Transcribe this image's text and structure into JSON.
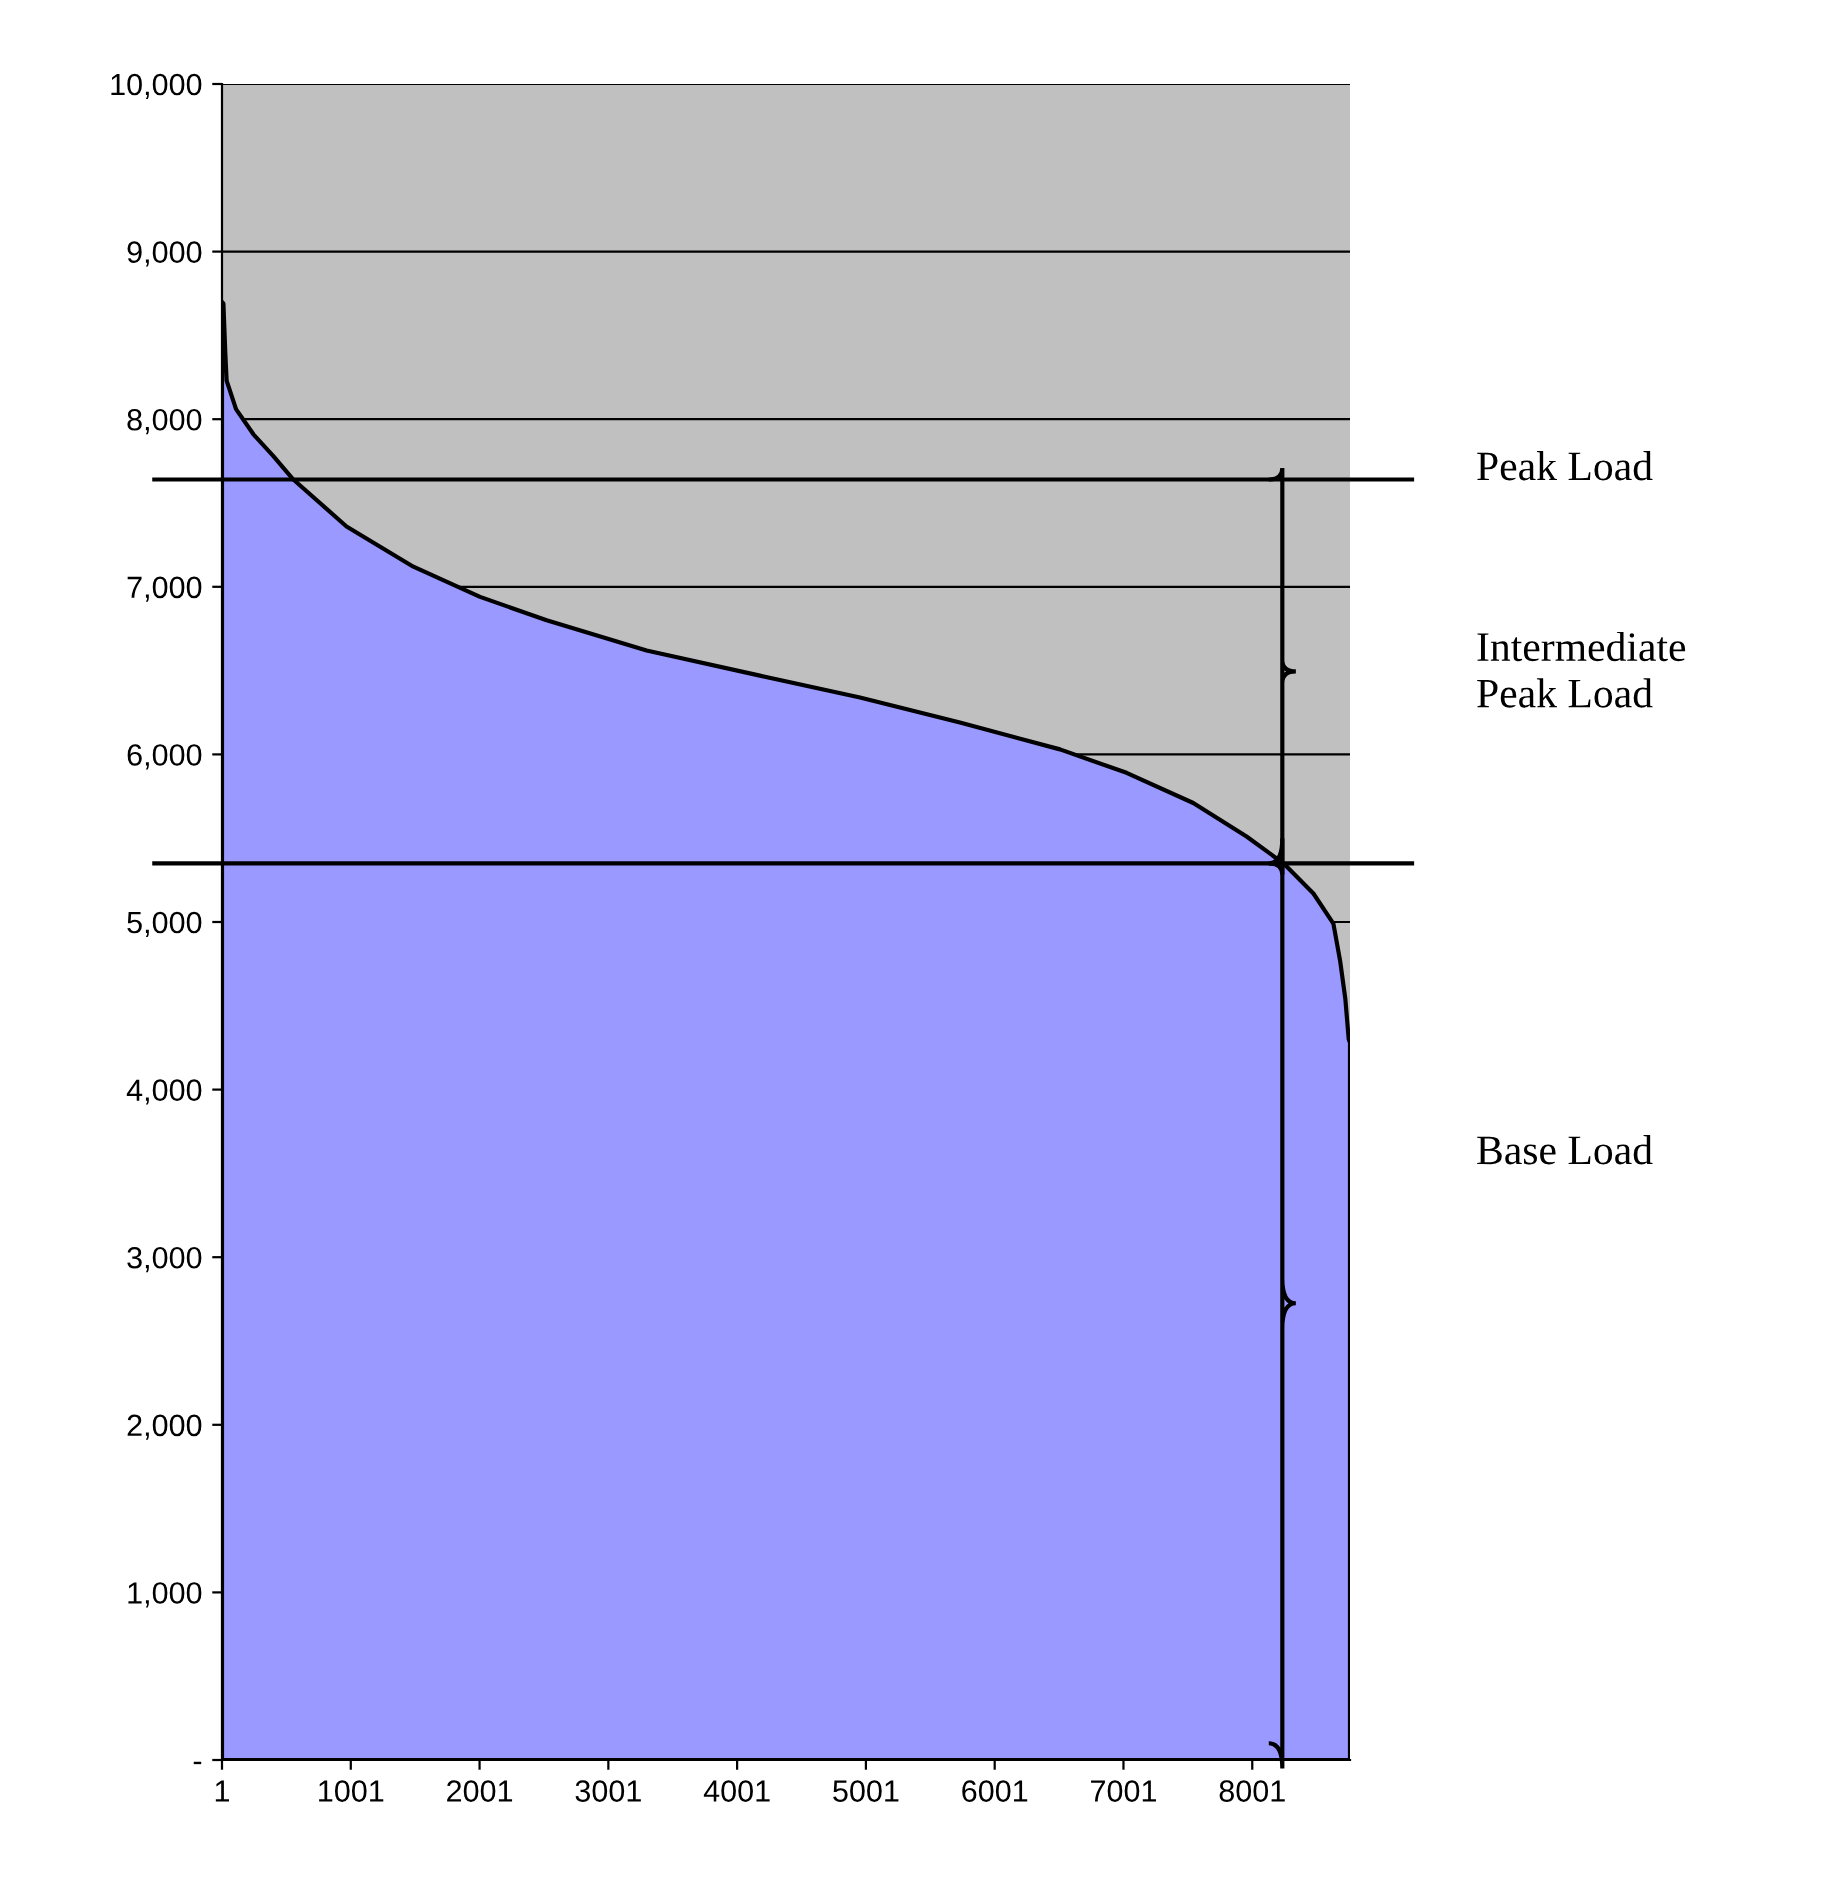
{
  "chart_data": {
    "type": "area",
    "series": [
      {
        "color": "#9999ff",
        "x": [
          1,
          12,
          27,
          37,
          110,
          245,
          400,
          555,
          968,
          1487,
          2005,
          2522,
          3298,
          4178,
          4955,
          5731,
          6508,
          7025,
          7543,
          7957,
          8243,
          8476,
          8631,
          8683,
          8724,
          8750,
          8760
        ],
        "values": [
          8700,
          8690,
          8390,
          8230,
          8060,
          7910,
          7780,
          7640,
          7360,
          7120,
          6940,
          6800,
          6620,
          6470,
          6340,
          6190,
          6030,
          5890,
          5710,
          5510,
          5350,
          5170,
          4990,
          4770,
          4540,
          4300,
          4280
        ]
      }
    ],
    "xlim": [
      1,
      8760
    ],
    "xticks": [
      1,
      1001,
      2001,
      3001,
      4001,
      5001,
      6001,
      7001,
      8001
    ],
    "ylim": [
      0,
      10000
    ],
    "yticks": [
      {
        "value": 0,
        "label": "-"
      },
      {
        "value": 1000,
        "label": "1,000"
      },
      {
        "value": 2000,
        "label": "2,000"
      },
      {
        "value": 3000,
        "label": "3,000"
      },
      {
        "value": 4000,
        "label": "4,000"
      },
      {
        "value": 5000,
        "label": "5,000"
      },
      {
        "value": 6000,
        "label": "6,000"
      },
      {
        "value": 7000,
        "label": "7,000"
      },
      {
        "value": 8000,
        "label": "8,000"
      },
      {
        "value": 9000,
        "label": "9,000"
      },
      {
        "value": 10000,
        "label": "10,000"
      }
    ],
    "grid": "y",
    "ref_lines": [
      {
        "axis": "y",
        "value": 7640,
        "color": "#000000"
      },
      {
        "axis": "y",
        "value": 5350,
        "color": "#000000"
      }
    ],
    "annotations": [
      "Peak Load",
      "Intermediate\nPeak Load",
      "Base Load"
    ]
  }
}
